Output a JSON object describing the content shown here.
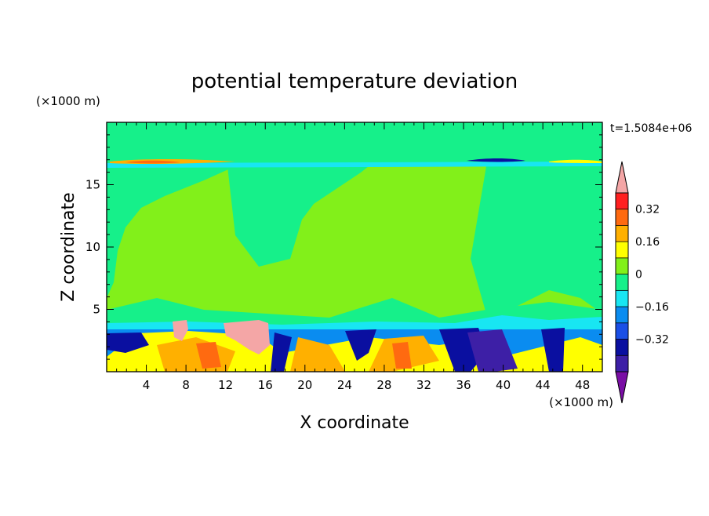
{
  "chart_data": {
    "type": "heatmap",
    "title": "potential temperature deviation",
    "xlabel": "X coordinate",
    "ylabel": "Z coordinate",
    "x_unit": "(×1000 m)",
    "y_unit": "(×1000 m)",
    "time_label": "t=1.5084e+06",
    "xlim": [
      0,
      50
    ],
    "ylim": [
      0,
      20
    ],
    "x_ticks": [
      4,
      8,
      12,
      16,
      20,
      24,
      28,
      32,
      36,
      40,
      44,
      48
    ],
    "y_ticks": [
      5,
      10,
      15
    ],
    "colorbar": {
      "levels": [
        -0.48,
        -0.4,
        -0.32,
        -0.24,
        -0.16,
        -0.08,
        0,
        0.08,
        0.16,
        0.24,
        0.32,
        0.4,
        0.48
      ],
      "colors": [
        "#7a0ea5",
        "#3d1fa6",
        "#0a0fa0",
        "#1a4fe6",
        "#0a8cf0",
        "#18e6f2",
        "#16f08a",
        "#82f01a",
        "#ffff00",
        "#ffb000",
        "#ff6a10",
        "#ff2020",
        "#f4a6a6"
      ],
      "tick_labels": [
        "0.32",
        "0.16",
        "0",
        "-0.16",
        "-0.32"
      ]
    },
    "background_color": "#82f01a"
  }
}
